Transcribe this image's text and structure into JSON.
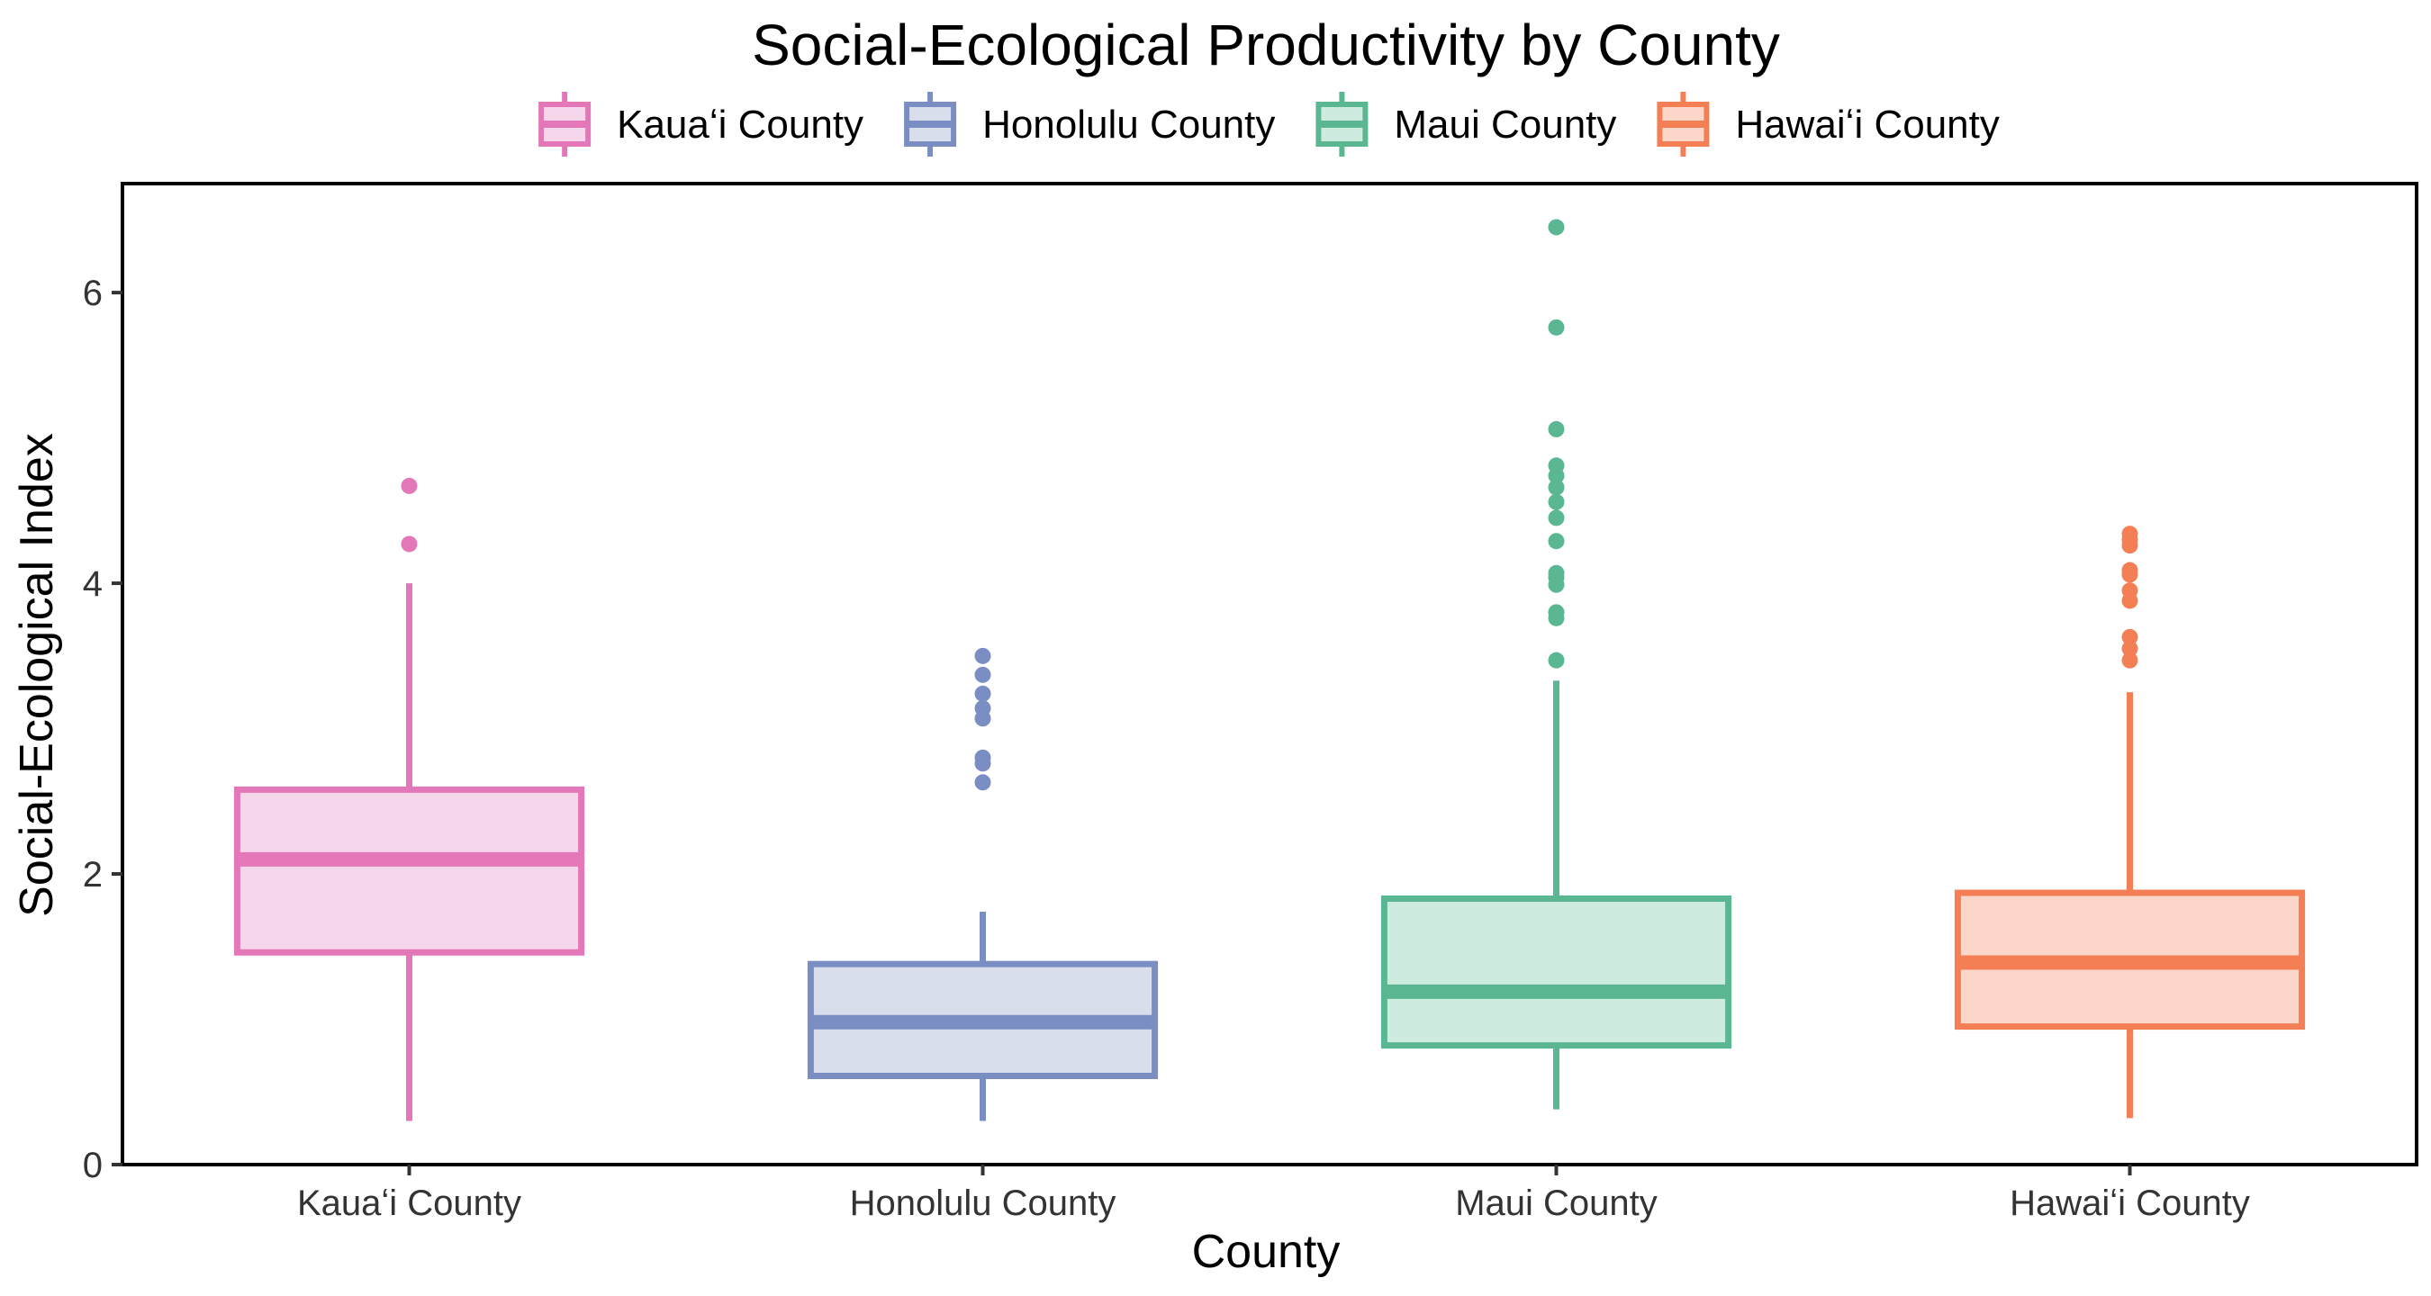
{
  "chart_data": {
    "type": "boxplot",
    "title": "Social-Ecological Productivity by County",
    "xlabel": "County",
    "ylabel": "Social-Ecological Index",
    "ylim": [
      0,
      6.75
    ],
    "yticks": [
      0,
      2,
      4,
      6
    ],
    "grid": false,
    "legend_position": "top",
    "categories": [
      "Kauaʻi County",
      "Honolulu County",
      "Maui County",
      "Hawaiʻi County"
    ],
    "series": [
      {
        "name": "Kauaʻi County",
        "color": "#e377b7",
        "fill": "#f6d6ea",
        "whisker_low": 0.3,
        "q1": 1.46,
        "median": 2.1,
        "q3": 2.58,
        "whisker_high": 4.0,
        "outliers": [
          4.27,
          4.67
        ]
      },
      {
        "name": "Honolulu County",
        "color": "#7b8ec4",
        "fill": "#d9deed",
        "whisker_low": 0.3,
        "q1": 0.61,
        "median": 0.98,
        "q3": 1.38,
        "whisker_high": 1.74,
        "outliers": [
          2.63,
          2.76,
          2.8,
          3.07,
          3.14,
          3.24,
          3.37,
          3.5
        ]
      },
      {
        "name": "Maui County",
        "color": "#5ab792",
        "fill": "#cdebde",
        "whisker_low": 0.38,
        "q1": 0.82,
        "median": 1.19,
        "q3": 1.83,
        "whisker_high": 3.33,
        "outliers": [
          3.47,
          3.76,
          3.8,
          3.99,
          4.04,
          4.07,
          4.29,
          4.45,
          4.56,
          4.66,
          4.74,
          4.81,
          5.06,
          5.76,
          6.45
        ]
      },
      {
        "name": "Hawaiʻi County",
        "color": "#f47f55",
        "fill": "#fcd7c9",
        "whisker_low": 0.32,
        "q1": 0.95,
        "median": 1.39,
        "q3": 1.87,
        "whisker_high": 3.25,
        "outliers": [
          3.47,
          3.55,
          3.63,
          3.88,
          3.95,
          4.06,
          4.09,
          4.26,
          4.3,
          4.34
        ]
      }
    ]
  }
}
